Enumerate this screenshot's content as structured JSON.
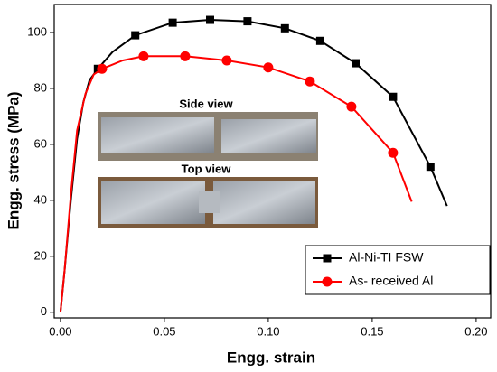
{
  "chart_data": {
    "type": "line",
    "xlabel": "Engg. strain",
    "ylabel": "Engg. stress (MPa)",
    "inset_labels": [
      "Side view",
      "Top view"
    ],
    "xlim": [
      -0.003,
      0.207
    ],
    "ylim": [
      -2,
      110
    ],
    "xticks": [
      {
        "value": 0,
        "label": "0.00"
      },
      {
        "value": 0.05,
        "label": "0.05"
      },
      {
        "value": 0.1,
        "label": "0.10"
      },
      {
        "value": 0.15,
        "label": "0.15"
      },
      {
        "value": 0.2,
        "label": "0.20"
      }
    ],
    "yticks": [
      0,
      20,
      40,
      60,
      80,
      100
    ],
    "legend": "lower right",
    "series": [
      {
        "name": "Al-Ni-TI FSW",
        "color": "#000000",
        "marker": "square",
        "x": [
          0,
          0.002,
          0.005,
          0.008,
          0.011,
          0.014,
          0.018,
          0.025,
          0.036,
          0.054,
          0.072,
          0.09,
          0.108,
          0.125,
          0.142,
          0.16,
          0.178,
          0.186
        ],
        "values": [
          0,
          15,
          40,
          62,
          75,
          83,
          87,
          93,
          99,
          103.5,
          104.5,
          104,
          101.5,
          97,
          89,
          77,
          52,
          38
        ],
        "marker_x": [
          0.018,
          0.036,
          0.054,
          0.072,
          0.09,
          0.108,
          0.125,
          0.142,
          0.16,
          0.178
        ],
        "marker_values": [
          87,
          99,
          103.5,
          104.5,
          104,
          101.5,
          97,
          89,
          77,
          52
        ]
      },
      {
        "name": "As- received Al",
        "color": "#ff0000",
        "marker": "circle",
        "x": [
          0,
          0.002,
          0.005,
          0.008,
          0.012,
          0.016,
          0.02,
          0.03,
          0.04,
          0.06,
          0.08,
          0.1,
          0.12,
          0.14,
          0.16,
          0.169
        ],
        "values": [
          0,
          15,
          42,
          65,
          78,
          85,
          87,
          90,
          91.5,
          91.5,
          90,
          87.5,
          82.5,
          73.5,
          57,
          39.5
        ],
        "marker_x": [
          0.02,
          0.04,
          0.06,
          0.08,
          0.1,
          0.12,
          0.14,
          0.16
        ],
        "marker_values": [
          87,
          91.5,
          91.5,
          90,
          87.5,
          82.5,
          73.5,
          57
        ]
      }
    ]
  }
}
